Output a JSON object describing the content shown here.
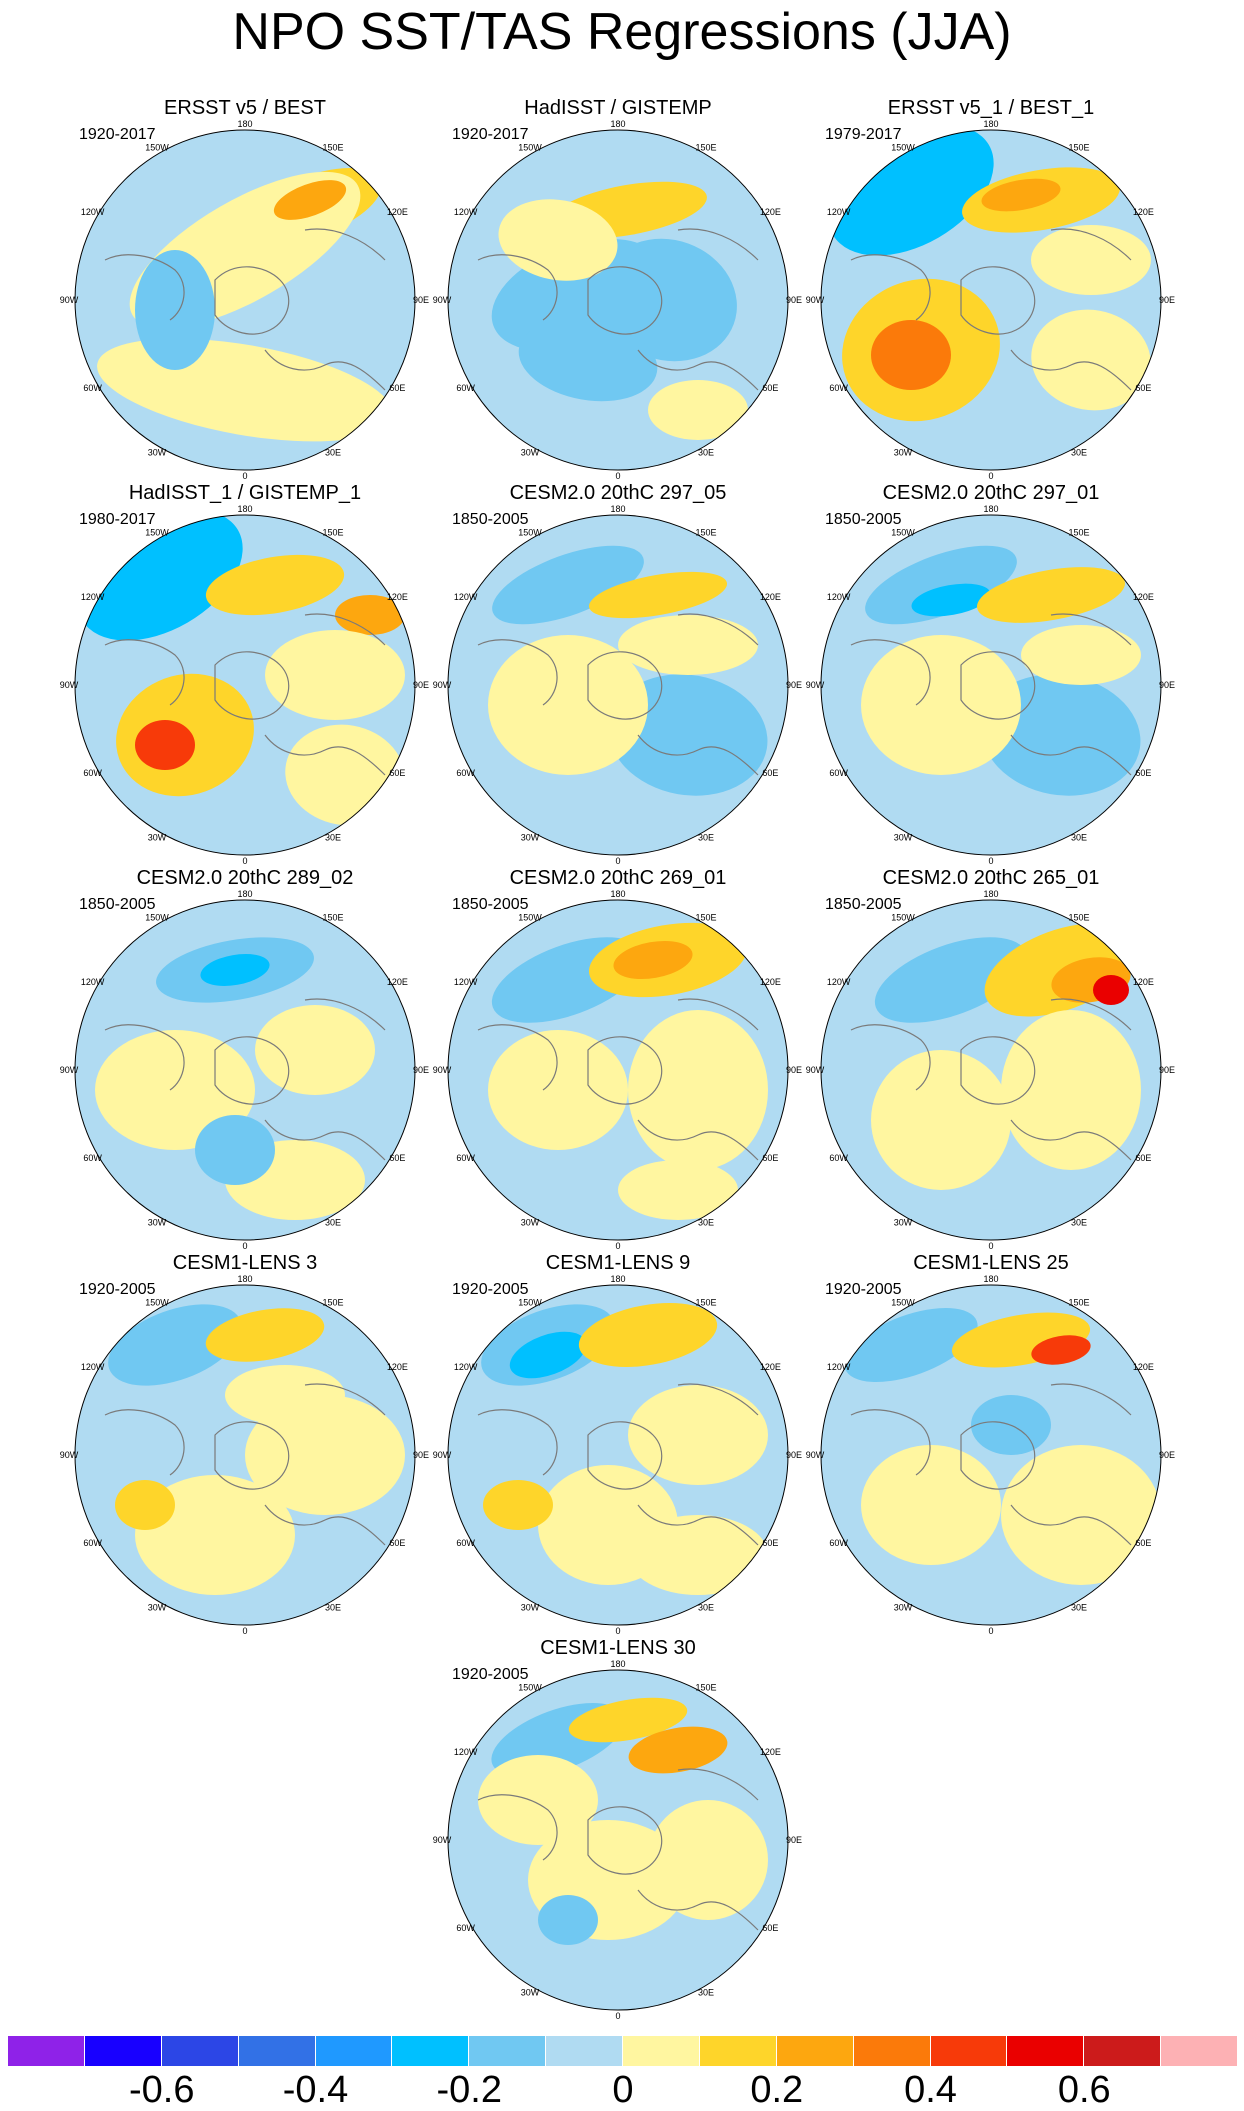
{
  "title": "NPO SST/TAS Regressions (JJA)",
  "lon_labels": [
    "180",
    "150E",
    "120E",
    "90E",
    "60E",
    "30E",
    "0",
    "30W",
    "60W",
    "90W",
    "120W",
    "150W"
  ],
  "panels": [
    {
      "title": "ERSST v5 / BEST",
      "period": "1920-2017"
    },
    {
      "title": "HadISST / GISTEMP",
      "period": "1920-2017"
    },
    {
      "title": "ERSST v5_1 / BEST_1",
      "period": "1979-2017"
    },
    {
      "title": "HadISST_1 / GISTEMP_1",
      "period": "1980-2017"
    },
    {
      "title": "CESM2.0 20thC 297_05",
      "period": "1850-2005"
    },
    {
      "title": "CESM2.0 20thC 297_01",
      "period": "1850-2005"
    },
    {
      "title": "CESM2.0 20thC 289_02",
      "period": "1850-2005"
    },
    {
      "title": "CESM2.0 20thC 269_01",
      "period": "1850-2005"
    },
    {
      "title": "CESM2.0 20thC 265_01",
      "period": "1850-2005"
    },
    {
      "title": "CESM1-LENS 3",
      "period": "1920-2005"
    },
    {
      "title": "CESM1-LENS 9",
      "period": "1920-2005"
    },
    {
      "title": "CESM1-LENS 25",
      "period": "1920-2005"
    },
    {
      "title": "CESM1-LENS 30",
      "period": "1920-2005"
    }
  ],
  "colorbar": {
    "colors": [
      "#8f22e8",
      "#1800ff",
      "#2c46e6",
      "#3271e6",
      "#1f99ff",
      "#00c0ff",
      "#70c8f2",
      "#b0dbf2",
      "#fff6a0",
      "#fed52a",
      "#fda70f",
      "#fb7a0a",
      "#f73a09",
      "#ea0000",
      "#cc1b1b",
      "#fdb1b4"
    ],
    "tick_labels": [
      "-0.6",
      "-0.4",
      "-0.2",
      "0",
      "0.2",
      "0.4",
      "0.6"
    ]
  }
}
